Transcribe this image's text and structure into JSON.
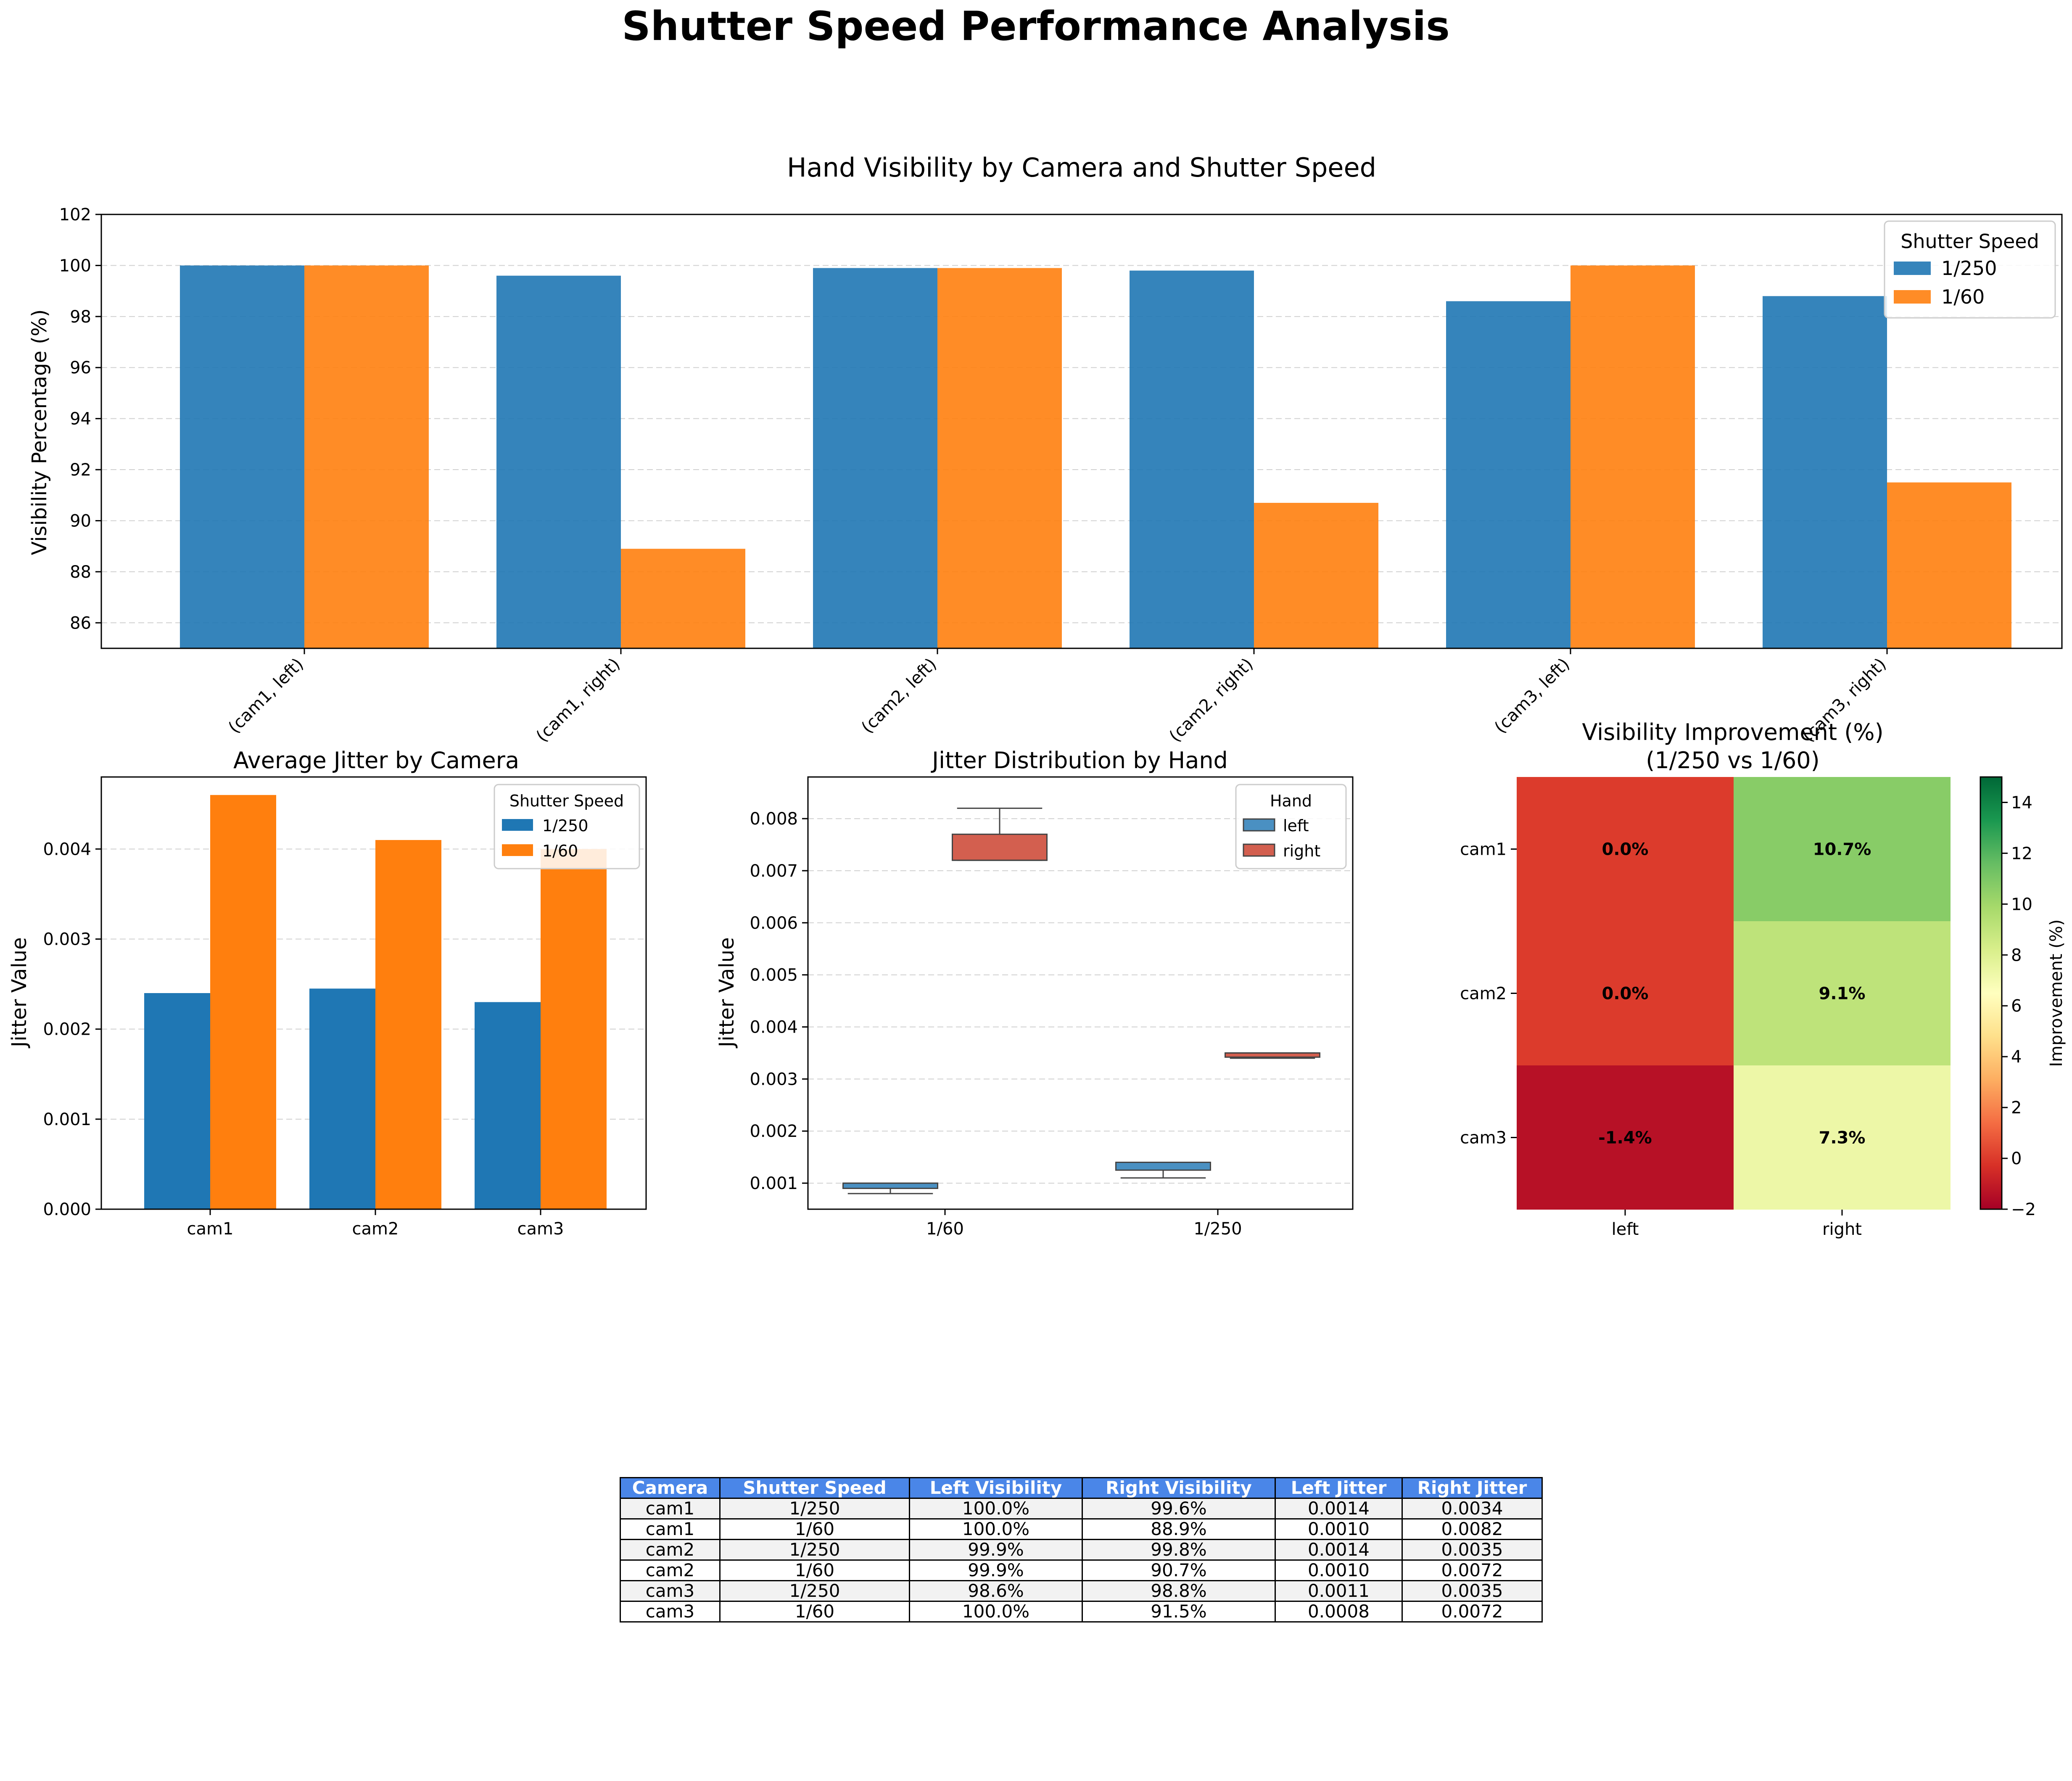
{
  "figure_title": "Shutter Speed Performance Analysis",
  "colors": {
    "speed_1_250": "#1f77b4",
    "speed_1_60": "#ff7f0e",
    "box_left": "#4a90c2",
    "box_right": "#d35f4f",
    "header_bg": "#4a86e8"
  },
  "chart_data": [
    {
      "id": "visibility",
      "type": "bar",
      "title": "Hand Visibility by Camera and Shutter Speed",
      "xlabel": "",
      "ylabel": "Visibility Percentage (%)",
      "ylim": [
        85,
        102
      ],
      "yticks": [
        86,
        88,
        90,
        92,
        94,
        96,
        98,
        100,
        102
      ],
      "grid": true,
      "legend_position": "top-right",
      "legend_title": "Shutter Speed",
      "categories": [
        "(cam1, left)",
        "(cam1, right)",
        "(cam2, left)",
        "(cam2, right)",
        "(cam3, left)",
        "(cam3, right)"
      ],
      "series": [
        {
          "name": "1/250",
          "values": [
            100.0,
            99.6,
            99.9,
            99.8,
            98.6,
            98.8
          ]
        },
        {
          "name": "1/60",
          "values": [
            100.0,
            88.9,
            99.9,
            90.7,
            100.0,
            91.5
          ]
        }
      ]
    },
    {
      "id": "avg_jitter",
      "type": "bar",
      "title": "Average Jitter by Camera",
      "xlabel": "",
      "ylabel": "Jitter Value",
      "ylim": [
        0,
        0.0048
      ],
      "yticks": [
        "0.000",
        "0.001",
        "0.002",
        "0.003",
        "0.004"
      ],
      "grid": true,
      "legend_position": "top-right",
      "legend_title": "Shutter Speed",
      "categories": [
        "cam1",
        "cam2",
        "cam3"
      ],
      "series": [
        {
          "name": "1/250",
          "values": [
            0.0024,
            0.00245,
            0.0023
          ]
        },
        {
          "name": "1/60",
          "values": [
            0.0046,
            0.0041,
            0.004
          ]
        }
      ]
    },
    {
      "id": "jitter_dist",
      "type": "box",
      "title": "Jitter Distribution by Hand",
      "xlabel": "",
      "ylabel": "Jitter Value",
      "ylim": [
        0.0005,
        0.0088
      ],
      "yticks": [
        "0.001",
        "0.002",
        "0.003",
        "0.004",
        "0.005",
        "0.006",
        "0.007",
        "0.008"
      ],
      "grid": true,
      "legend_position": "top-right",
      "legend_title": "Hand",
      "categories": [
        "1/60",
        "1/250"
      ],
      "series": [
        {
          "name": "left",
          "boxes": [
            {
              "min": 0.0008,
              "q1": 0.0009,
              "median": 0.001,
              "q3": 0.001,
              "max": 0.001
            },
            {
              "min": 0.0011,
              "q1": 0.00125,
              "median": 0.0014,
              "q3": 0.0014,
              "max": 0.0014
            }
          ]
        },
        {
          "name": "right",
          "boxes": [
            {
              "min": 0.0072,
              "q1": 0.0072,
              "median": 0.0072,
              "q3": 0.0077,
              "max": 0.0082
            },
            {
              "min": 0.0034,
              "q1": 0.00342,
              "median": 0.0035,
              "q3": 0.0035,
              "max": 0.0035
            }
          ]
        }
      ]
    },
    {
      "id": "improvement",
      "type": "heatmap",
      "title": "Visibility Improvement (%)\n(1/250 vs 1/60)",
      "title_lines": [
        "Visibility Improvement (%)",
        "(1/250 vs 1/60)"
      ],
      "rows": [
        "cam1",
        "cam2",
        "cam3"
      ],
      "cols": [
        "left",
        "right"
      ],
      "values": [
        [
          0.0,
          10.7
        ],
        [
          0.0,
          9.1
        ],
        [
          -1.4,
          7.3
        ]
      ],
      "value_labels": [
        [
          "0.0%",
          "10.7%"
        ],
        [
          "0.0%",
          "9.1%"
        ],
        [
          "-1.4%",
          "7.3%"
        ]
      ],
      "colormap": "RdYlGn",
      "vmin": -2,
      "vmax": 15,
      "colorbar_label": "Improvement (%)",
      "colorbar_ticks": [
        "−2",
        "0",
        "2",
        "4",
        "6",
        "8",
        "10",
        "12",
        "14"
      ]
    }
  ],
  "table": {
    "columns": [
      "Camera",
      "Shutter Speed",
      "Left Visibility",
      "Right Visibility",
      "Left Jitter",
      "Right Jitter"
    ],
    "rows": [
      [
        "cam1",
        "1/250",
        "100.0%",
        "99.6%",
        "0.0014",
        "0.0034"
      ],
      [
        "cam1",
        "1/60",
        "100.0%",
        "88.9%",
        "0.0010",
        "0.0082"
      ],
      [
        "cam2",
        "1/250",
        "99.9%",
        "99.8%",
        "0.0014",
        "0.0035"
      ],
      [
        "cam2",
        "1/60",
        "99.9%",
        "90.7%",
        "0.0010",
        "0.0072"
      ],
      [
        "cam3",
        "1/250",
        "98.6%",
        "98.8%",
        "0.0011",
        "0.0035"
      ],
      [
        "cam3",
        "1/60",
        "100.0%",
        "91.5%",
        "0.0008",
        "0.0072"
      ]
    ]
  }
}
